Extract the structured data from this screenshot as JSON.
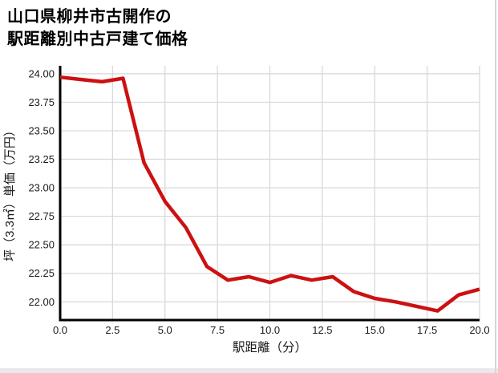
{
  "title": {
    "line1": "山口県柳井市古開作の",
    "line2": "駅距離別中古戸建て価格"
  },
  "chart_data": {
    "type": "line",
    "title": "山口県柳井市古開作の駅距離別中古戸建て価格",
    "xlabel": "駅距離（分）",
    "ylabel": "坪（3.3㎡）単価（万円）",
    "x": [
      0,
      1,
      2,
      3,
      4,
      5,
      6,
      7,
      8,
      9,
      10,
      11,
      12,
      13,
      14,
      15,
      16,
      17,
      18,
      19,
      20
    ],
    "y": [
      23.97,
      23.95,
      23.93,
      23.96,
      23.22,
      22.88,
      22.65,
      22.31,
      22.19,
      22.22,
      22.17,
      22.23,
      22.19,
      22.22,
      22.09,
      22.03,
      22.0,
      21.96,
      21.92,
      22.06,
      22.11
    ],
    "xlim": [
      0,
      20
    ],
    "ylim": [
      21.84,
      24.07
    ],
    "xticks": [
      0,
      2.5,
      5,
      7.5,
      10,
      12.5,
      15,
      17.5,
      20
    ],
    "xtick_labels": [
      "0.0",
      "2.5",
      "5.0",
      "7.5",
      "10.0",
      "12.5",
      "15.0",
      "17.5",
      "20.0"
    ],
    "yticks": [
      22.0,
      22.25,
      22.5,
      22.75,
      23.0,
      23.25,
      23.5,
      23.75,
      24.0
    ],
    "ytick_labels": [
      "22.00",
      "22.25",
      "22.50",
      "22.75",
      "23.00",
      "23.25",
      "23.50",
      "23.75",
      "24.00"
    ],
    "grid": true,
    "legend": false,
    "line_color": "#cc1111"
  },
  "colors": {
    "background": "#ffffff",
    "grid": "#d9d9d9",
    "axis": "#000000",
    "text": "#1a1a1a",
    "line": "#cc1111",
    "bottom_bar": "#e9e9e9",
    "right_edge": "#d6d6d6"
  }
}
